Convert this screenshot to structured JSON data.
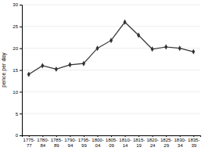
{
  "chart_data": {
    "type": "line",
    "ylabel": "pence per day",
    "categories": [
      "1775-\n77",
      "1780-\n84",
      "1785-\n89",
      "1790-\n94",
      "1795-\n99",
      "1800-\n04",
      "1805-\n09",
      "1810-\n14",
      "1815-\n19",
      "1820-\n24",
      "1825-\n29",
      "1830-\n34",
      "1835-\n39"
    ],
    "values": [
      14.0,
      16.0,
      15.2,
      16.2,
      16.5,
      20.0,
      21.8,
      26.0,
      23.0,
      19.8,
      20.3,
      20.0,
      19.2
    ],
    "color": "#333333",
    "marker": "diamond",
    "ylim": [
      0,
      30
    ],
    "yticks": [
      0,
      5,
      10,
      15,
      20,
      25,
      30
    ],
    "grid": true
  }
}
